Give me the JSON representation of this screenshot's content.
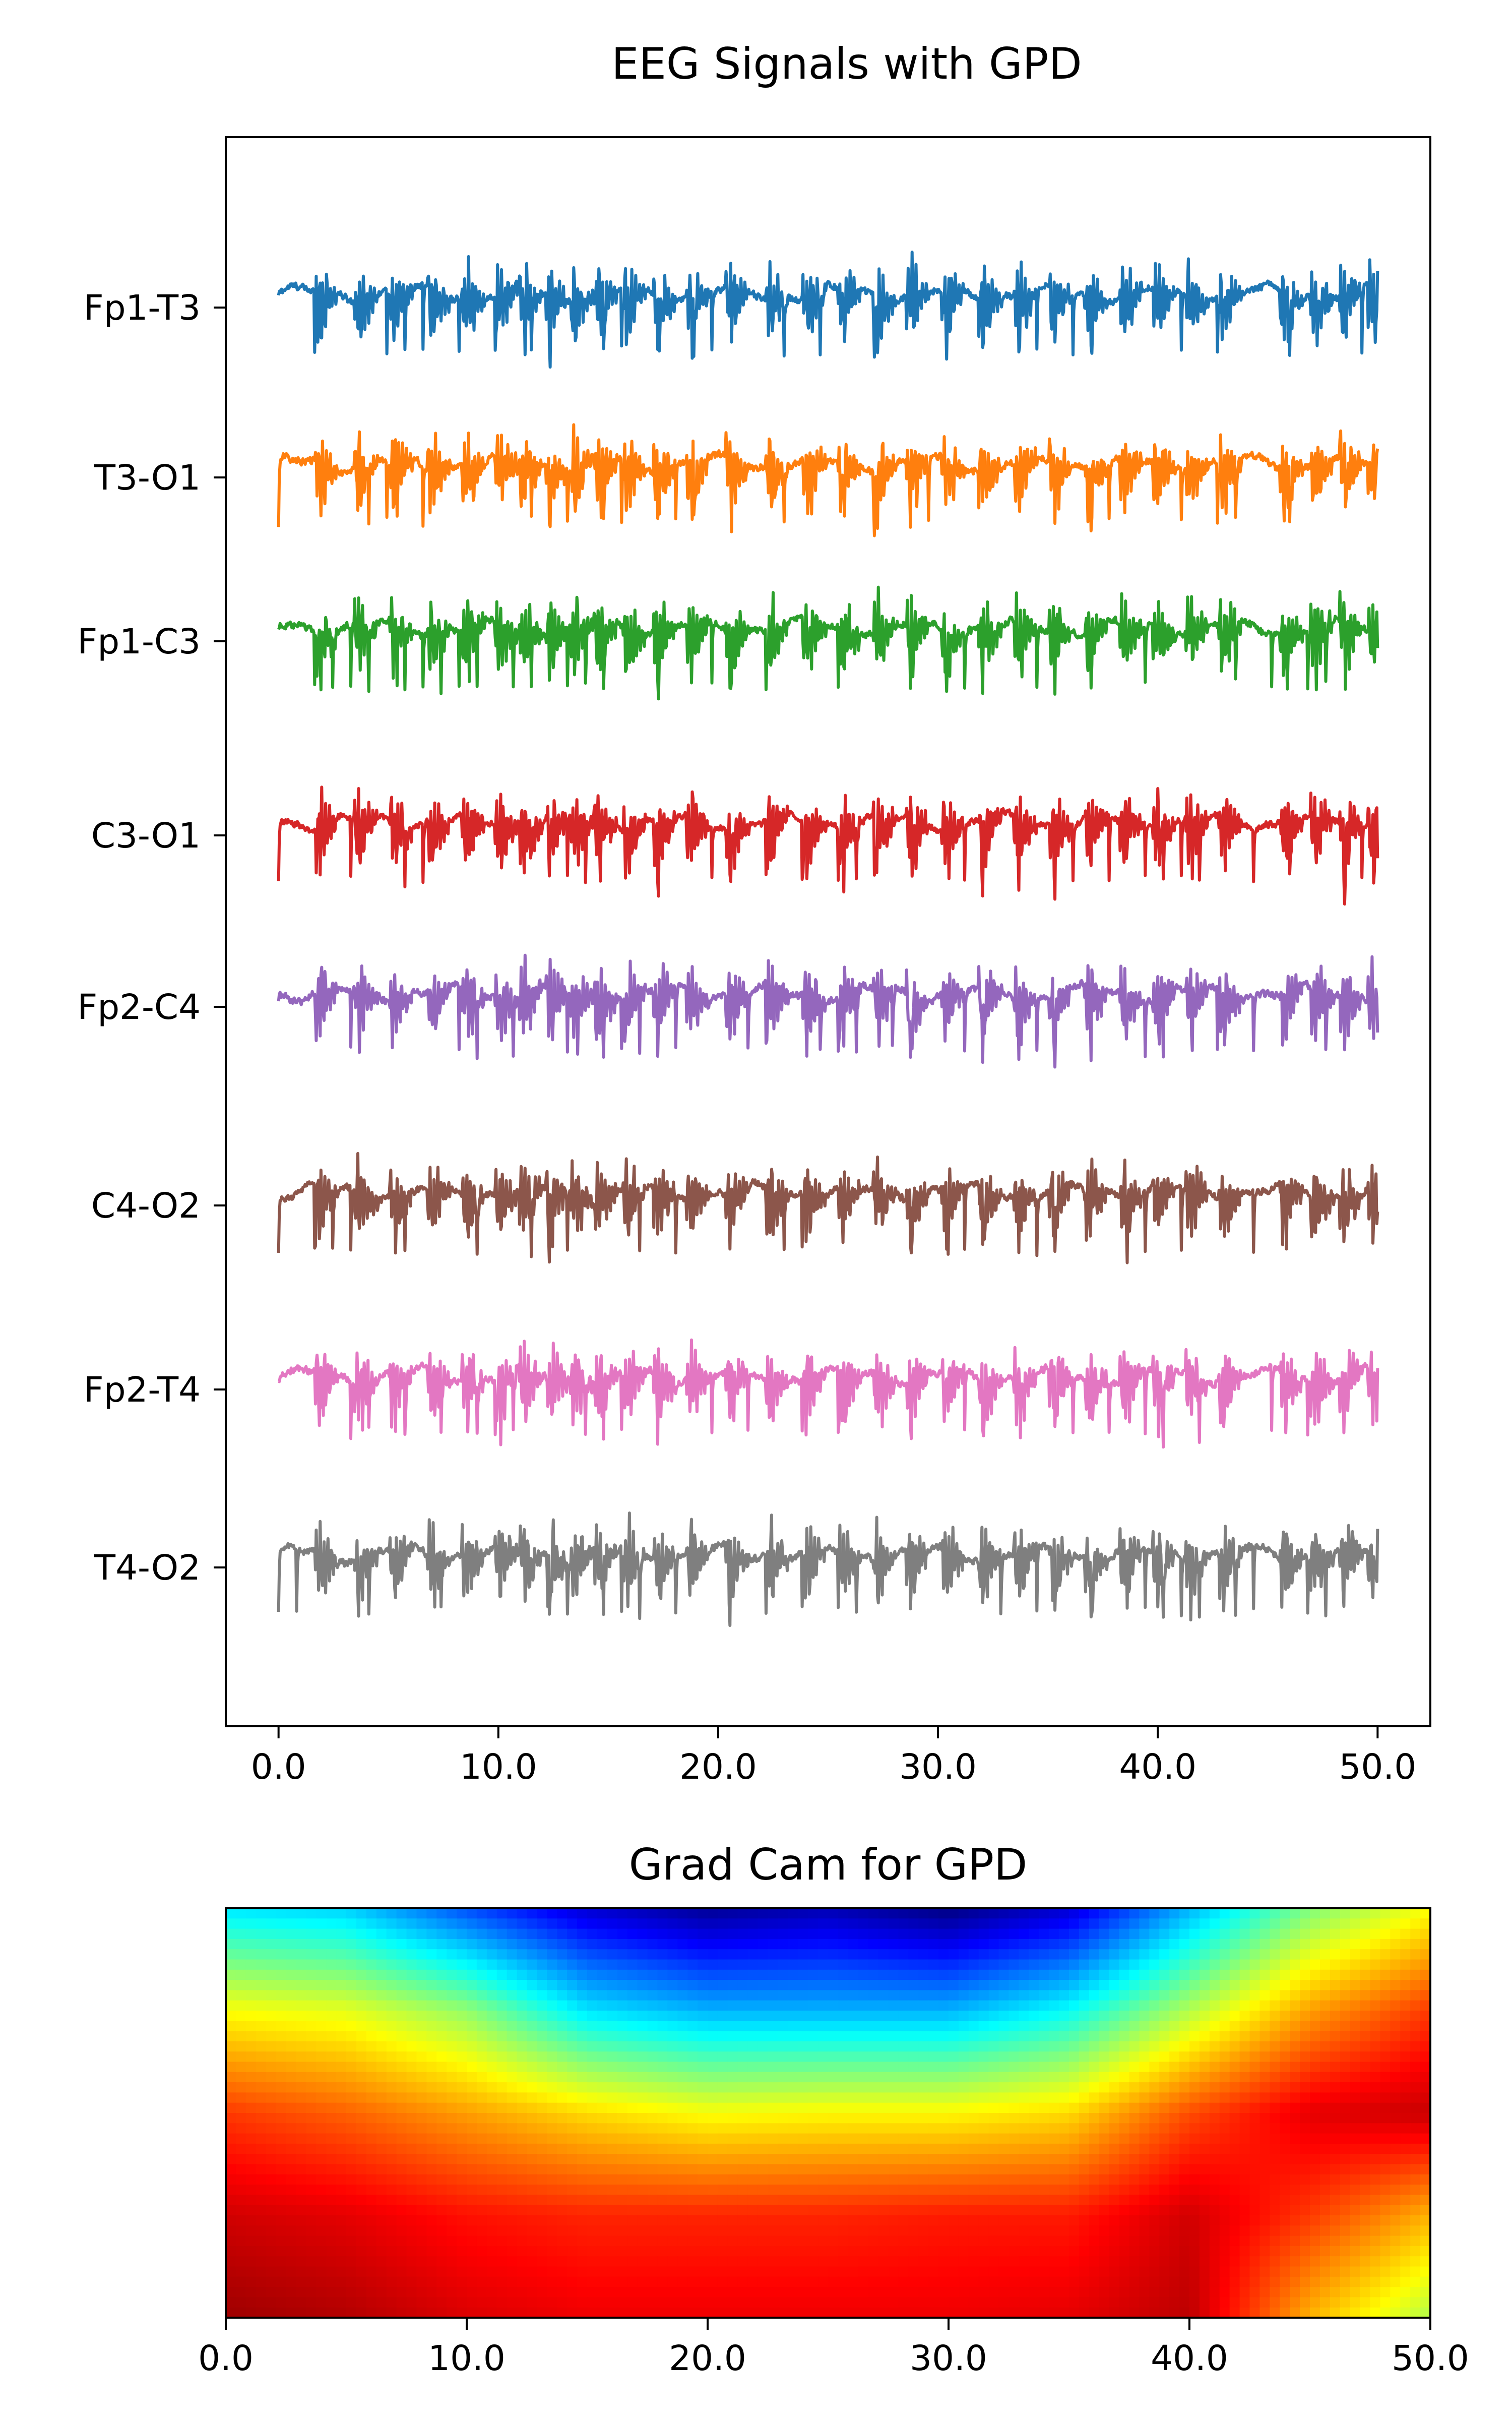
{
  "chart_data": [
    {
      "type": "line",
      "title": "EEG Signals with GPD",
      "xlabel": "",
      "ylabel": "",
      "xlim": [
        -2.4,
        52.4
      ],
      "grid": false,
      "legend": "none",
      "x_ticks": [
        0,
        10,
        20,
        30,
        40,
        50
      ],
      "x_tick_labels": [
        "0.0",
        "10.0",
        "20.0",
        "30.0",
        "40.0",
        "50.0"
      ],
      "channels": [
        {
          "name": "Fp1-T3",
          "color": "#1f77b4"
        },
        {
          "name": "T3-O1",
          "color": "#ff7f0e"
        },
        {
          "name": "Fp1-C3",
          "color": "#2ca02c"
        },
        {
          "name": "C3-O1",
          "color": "#d62728"
        },
        {
          "name": "Fp2-C4",
          "color": "#9467bd"
        },
        {
          "name": "C4-O2",
          "color": "#8c564b"
        },
        {
          "name": "Fp2-T4",
          "color": "#e377c2"
        },
        {
          "name": "T4-O2",
          "color": "#7f7f7f"
        }
      ],
      "periodic_discharge_times": [
        1.9,
        3.7,
        5.3,
        7.0,
        8.6,
        10.1,
        11.2,
        12.4,
        13.5,
        14.6,
        15.9,
        17.3,
        18.8,
        20.6,
        22.4,
        24.1,
        25.7,
        27.3,
        28.8,
        30.4,
        32.1,
        33.7,
        35.3,
        36.9,
        38.5,
        40.0,
        41.5,
        43.0,
        45.8,
        47.2,
        48.5,
        49.8
      ]
    },
    {
      "type": "heatmap",
      "title": "Grad Cam for GPD",
      "xlabel": "",
      "ylabel": "",
      "colormap": "jet",
      "xlim": [
        0,
        50
      ],
      "x_ticks": [
        0,
        10,
        20,
        30,
        40,
        50
      ],
      "x_tick_labels": [
        "0.0",
        "10.0",
        "20.0",
        "30.0",
        "40.0",
        "50.0"
      ],
      "columns_x": [
        0,
        5,
        10,
        15,
        20,
        25,
        30,
        35,
        40,
        45,
        50
      ],
      "rows": [
        [
          0.35,
          0.33,
          0.2,
          0.08,
          0.02,
          0.05,
          0.0,
          0.08,
          0.3,
          0.5,
          0.62
        ],
        [
          0.62,
          0.6,
          0.52,
          0.35,
          0.3,
          0.3,
          0.3,
          0.38,
          0.55,
          0.72,
          0.82
        ],
        [
          0.82,
          0.78,
          0.72,
          0.66,
          0.62,
          0.63,
          0.63,
          0.66,
          0.8,
          0.9,
          0.93
        ],
        [
          0.92,
          0.9,
          0.86,
          0.84,
          0.84,
          0.84,
          0.85,
          0.85,
          0.92,
          0.82,
          0.7
        ],
        [
          0.97,
          0.95,
          0.91,
          0.89,
          0.89,
          0.89,
          0.89,
          0.9,
          0.94,
          0.7,
          0.55
        ]
      ]
    }
  ]
}
